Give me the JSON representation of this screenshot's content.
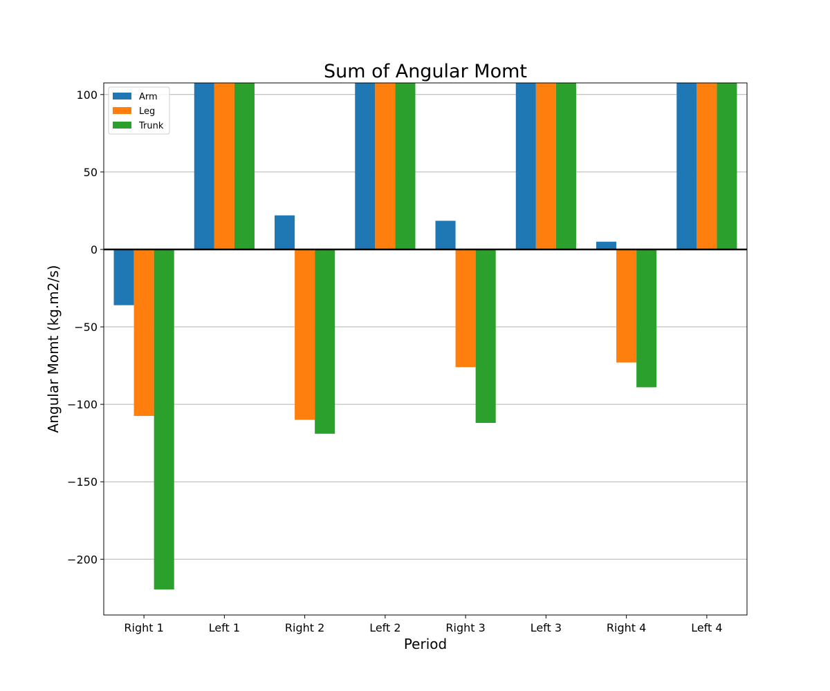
{
  "chart_data": {
    "type": "bar",
    "title": "Sum of Angular Momt",
    "xlabel": "Period",
    "ylabel": "Angular Momt (kg.m2/s)",
    "categories": [
      "Right 1",
      "Left 1",
      "Right 2",
      "Left 2",
      "Right 3",
      "Left 3",
      "Right 4",
      "Left 4"
    ],
    "series": [
      {
        "name": "Arm",
        "color": "#1f77b4",
        "values": [
          -36,
          108,
          22,
          108,
          18.5,
          108,
          5,
          108
        ]
      },
      {
        "name": "Leg",
        "color": "#ff7f0e",
        "values": [
          -107.5,
          108,
          -110,
          108,
          -76,
          108,
          -73,
          108
        ]
      },
      {
        "name": "Trunk",
        "color": "#2ca02c",
        "values": [
          -219.5,
          108,
          -119,
          108,
          -112,
          108,
          -89,
          108
        ]
      }
    ],
    "ylim": [
      -236,
      107.5
    ],
    "yticks": [
      100,
      50,
      0,
      -50,
      -100,
      -150,
      -200
    ],
    "ytick_labels": [
      "100",
      "50",
      "0",
      "−50",
      "−100",
      "−150",
      "−200"
    ],
    "grid": true,
    "zero_line": true,
    "legend_position": "upper-left"
  }
}
